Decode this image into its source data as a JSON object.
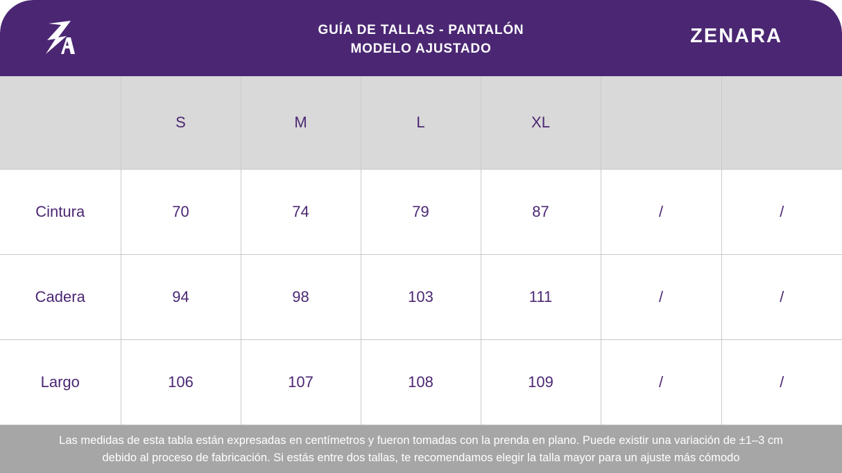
{
  "header": {
    "logo_text": "ZA",
    "title_line1": "GUÍA DE TALLAS - PANTALÓN",
    "title_line2": "MODELO AJUSTADO",
    "brand": "ZENARA",
    "background_color": "#4b2773"
  },
  "table": {
    "columns": [
      "",
      "S",
      "M",
      "L",
      "XL",
      "",
      ""
    ],
    "rows": [
      {
        "label": "Cintura",
        "values": [
          "70",
          "74",
          "79",
          "87",
          "/",
          "/"
        ]
      },
      {
        "label": "Cadera",
        "values": [
          "94",
          "98",
          "103",
          "111",
          "/",
          "/"
        ]
      },
      {
        "label": "Largo",
        "values": [
          "106",
          "107",
          "108",
          "109",
          "/",
          "/"
        ]
      }
    ],
    "text_color": "#4b2773",
    "header_row_color": "#d9d9d9"
  },
  "footer": {
    "line1": "Las medidas de esta tabla están expresadas en centímetros y fueron tomadas con la prenda en plano. Puede existir una variación de ±1–3 cm",
    "line2": "debido al proceso de fabricación. Si estás entre dos tallas, te recomendamos elegir la talla mayor para un ajuste más cómodo",
    "background_color": "#a6a6a6"
  }
}
